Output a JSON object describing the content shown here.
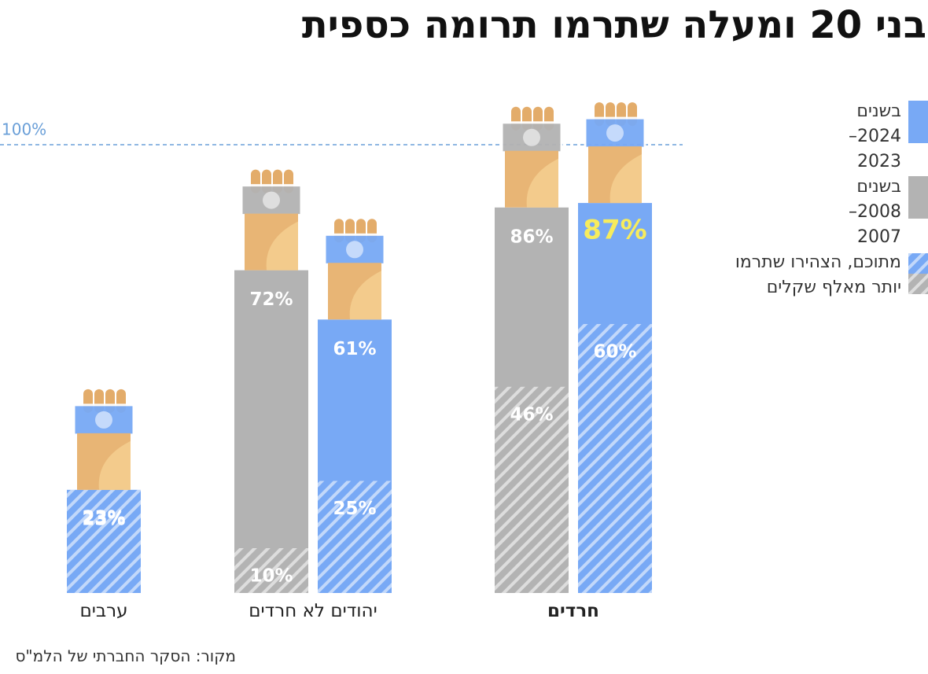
{
  "chart_data": {
    "type": "bar",
    "title": "בני 20 ומעלה שתרמו תרומה כספית",
    "categories": [
      "ערבים",
      "יהודים לא חרדים",
      "חרדים"
    ],
    "category_bold": [
      false,
      false,
      true
    ],
    "series": [
      {
        "name": "בשנים 2024–2023",
        "color": "#78a9f5",
        "values": [
          23,
          61,
          87
        ],
        "value_labels": [
          "23%",
          "61%",
          "87%"
        ],
        "value_label_colors": [
          "#ffffff",
          "#ffffff",
          "#f7ec5c"
        ]
      },
      {
        "name": "בשנים 2008–2007",
        "color": "#b3b3b3",
        "values": [
          null,
          72,
          86
        ],
        "value_labels": [
          null,
          "72%",
          "86%"
        ],
        "value_label_colors": [
          null,
          "#ffffff",
          "#ffffff"
        ]
      }
    ],
    "subset_name": "מתוכם, הצהירו שתרמו יותר מאלף שקלים",
    "subset": [
      {
        "values": [
          23,
          25,
          60
        ],
        "value_labels": [
          "23%",
          "25%",
          "60%"
        ]
      },
      {
        "values": [
          null,
          10,
          46
        ],
        "value_labels": [
          null,
          "10%",
          "46%"
        ]
      }
    ],
    "ylim": [
      0,
      100
    ],
    "reference_line": {
      "value": 100,
      "label": "100%",
      "color": "#6a9fd8"
    },
    "source": "מקור: הסקר החברתי של הלמ\"ס"
  }
}
